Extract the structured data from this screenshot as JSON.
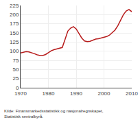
{
  "chart_data": {
    "type": "line",
    "x": [
      1970,
      1971,
      1972,
      1973,
      1974,
      1975,
      1976,
      1977,
      1978,
      1979,
      1980,
      1981,
      1982,
      1983,
      1984,
      1985,
      1986,
      1987,
      1988,
      1989,
      1990,
      1991,
      1992,
      1993,
      1994,
      1995,
      1996,
      1997,
      1998,
      1999,
      2000,
      2001,
      2002,
      2003,
      2004,
      2005,
      2006,
      2007,
      2008,
      2009,
      2010
    ],
    "values": [
      95,
      97,
      99,
      98,
      96,
      93,
      90,
      88,
      88,
      91,
      96,
      101,
      104,
      106,
      107,
      110,
      132,
      155,
      163,
      167,
      161,
      148,
      136,
      128,
      126,
      127,
      130,
      133,
      134,
      136,
      138,
      140,
      144,
      151,
      158,
      170,
      184,
      200,
      210,
      214,
      208
    ],
    "color": "#b71c1c",
    "xlim": [
      1970,
      2010
    ],
    "ylim": [
      0,
      225
    ],
    "xticks": [
      1970,
      1980,
      1990,
      2000,
      2010
    ],
    "yticks": [
      0,
      25,
      50,
      75,
      100,
      125,
      150,
      175,
      200,
      225
    ],
    "grid": true,
    "annotations": [
      "Kilde: Finansmarkedsstatistikk og nasjonalregnskapet,\nStatistisk sentralbyrå."
    ]
  }
}
